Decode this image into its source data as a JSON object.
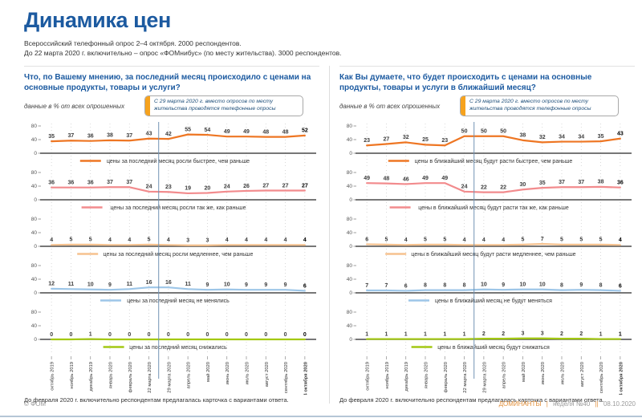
{
  "page": {
    "title": "Динамика цен",
    "subtitle1": "Всероссийский телефонный опрос 2–4 октября. 2000 респондентов.",
    "subtitle2": "До 22 марта 2020 г. включительно – опрос «ФОМнибус» (по месту жительства). 3000 респондентов."
  },
  "data_note": "данные в % от всех опрошенных",
  "callout": "С 29 марта 2020 г. вместо опросов по месту жительства проводятся телефонные опросы",
  "footnote": "До февраля 2020 г. включительно респондентам предлагалась карточка с вариантами ответа.",
  "footer": {
    "copyright": "© ФОМ",
    "brand": "ДОМИНАНТЫ",
    "sep1": "|",
    "issue": "неделя №40",
    "sep2": "||",
    "date": "08.10.2020"
  },
  "colors": {
    "accent_blue": "#1c5aa0",
    "divider_blue": "#7294b5",
    "callout_bar": "#f6a21d",
    "footer_brand": "#e2903b",
    "bottom_bar": "#b5c6d6",
    "axis": "#4a4a4a"
  },
  "chart_data": [
    {
      "type": "line",
      "title": "Что, по Вашему мнению, за последний месяц происходило с ценами на основные продукты, товары и услуги?",
      "unit": "% от всех опрошенных",
      "ylim": [
        0,
        80
      ],
      "yticks": [
        0,
        40,
        80
      ],
      "grid": true,
      "legend_position": "below-each-series",
      "divider_after": 6,
      "categories": [
        "октябрь 2019",
        "ноябрь 2019",
        "декабрь 2019",
        "январь 2020",
        "февраль 2020",
        "22 марта 2020",
        "29 марта 2020",
        "апрель 2020",
        "май 2020",
        "июнь 2020",
        "июль 2020",
        "август 2020",
        "сентябрь 2020",
        "4 октября 2020"
      ],
      "series": [
        {
          "name": "цены за последний месяц росли быстрее, чем раньше",
          "color": "#ee7623",
          "values": [
            35,
            37,
            36,
            38,
            37,
            43,
            42,
            55,
            54,
            49,
            49,
            48,
            48,
            52
          ]
        },
        {
          "name": "цены за последний месяц росли так же, как раньше",
          "color": "#f28b8d",
          "values": [
            36,
            36,
            36,
            37,
            37,
            24,
            23,
            19,
            20,
            24,
            26,
            27,
            27,
            27
          ]
        },
        {
          "name": "цены за последний месяц росли медленнее, чем раньше",
          "color": "#f6c28f",
          "values": [
            4,
            5,
            5,
            4,
            4,
            5,
            4,
            3,
            3,
            4,
            4,
            4,
            4,
            4
          ]
        },
        {
          "name": "цены за последний месяц не менялись",
          "color": "#9dc6e8",
          "values": [
            12,
            11,
            10,
            9,
            11,
            16,
            16,
            11,
            9,
            10,
            9,
            9,
            9,
            6
          ]
        },
        {
          "name": "цены за последний месяц снижались",
          "color": "#a3c813",
          "values": [
            0,
            0,
            1,
            0,
            0,
            0,
            0,
            0,
            0,
            0,
            0,
            0,
            0,
            0
          ]
        }
      ]
    },
    {
      "type": "line",
      "title": "Как Вы думаете, что будет происходить с ценами  на основные продукты, товары и услуги в ближайший месяц?",
      "unit": "% от всех опрошенных",
      "ylim": [
        0,
        80
      ],
      "yticks": [
        0,
        40,
        80
      ],
      "grid": true,
      "legend_position": "below-each-series",
      "divider_after": 6,
      "categories": [
        "октябрь 2019",
        "ноябрь 2019",
        "декабрь 2019",
        "январь 2020",
        "февраль 2020",
        "22 марта 2020",
        "29 марта 2020",
        "апрель 2020",
        "май 2020",
        "июнь 2020",
        "июль 2020",
        "август 2020",
        "сентябрь 2020",
        "4 октября 2020"
      ],
      "series": [
        {
          "name": "цены в ближайший месяц будут расти быстрее, чем раньше",
          "color": "#ee7623",
          "values": [
            23,
            27,
            32,
            25,
            23,
            50,
            50,
            50,
            38,
            32,
            34,
            34,
            35,
            43
          ]
        },
        {
          "name": "цены в ближайший месяц будут расти так же, как раньше",
          "color": "#f28b8d",
          "values": [
            49,
            48,
            46,
            49,
            49,
            24,
            22,
            22,
            30,
            35,
            37,
            37,
            38,
            36
          ]
        },
        {
          "name": "цены в ближайший месяц будут расти медленнее, чем раньше",
          "color": "#f6c28f",
          "values": [
            6,
            5,
            4,
            5,
            5,
            4,
            4,
            4,
            5,
            7,
            5,
            5,
            5,
            4
          ]
        },
        {
          "name": "цены в ближайший месяц не будут меняться",
          "color": "#9dc6e8",
          "values": [
            7,
            7,
            6,
            8,
            8,
            8,
            10,
            9,
            10,
            10,
            8,
            9,
            8,
            6
          ]
        },
        {
          "name": "цены в ближайший месяц будут снижаться",
          "color": "#a3c813",
          "values": [
            1,
            1,
            1,
            1,
            1,
            1,
            2,
            2,
            3,
            3,
            2,
            2,
            1,
            1
          ]
        }
      ]
    }
  ]
}
